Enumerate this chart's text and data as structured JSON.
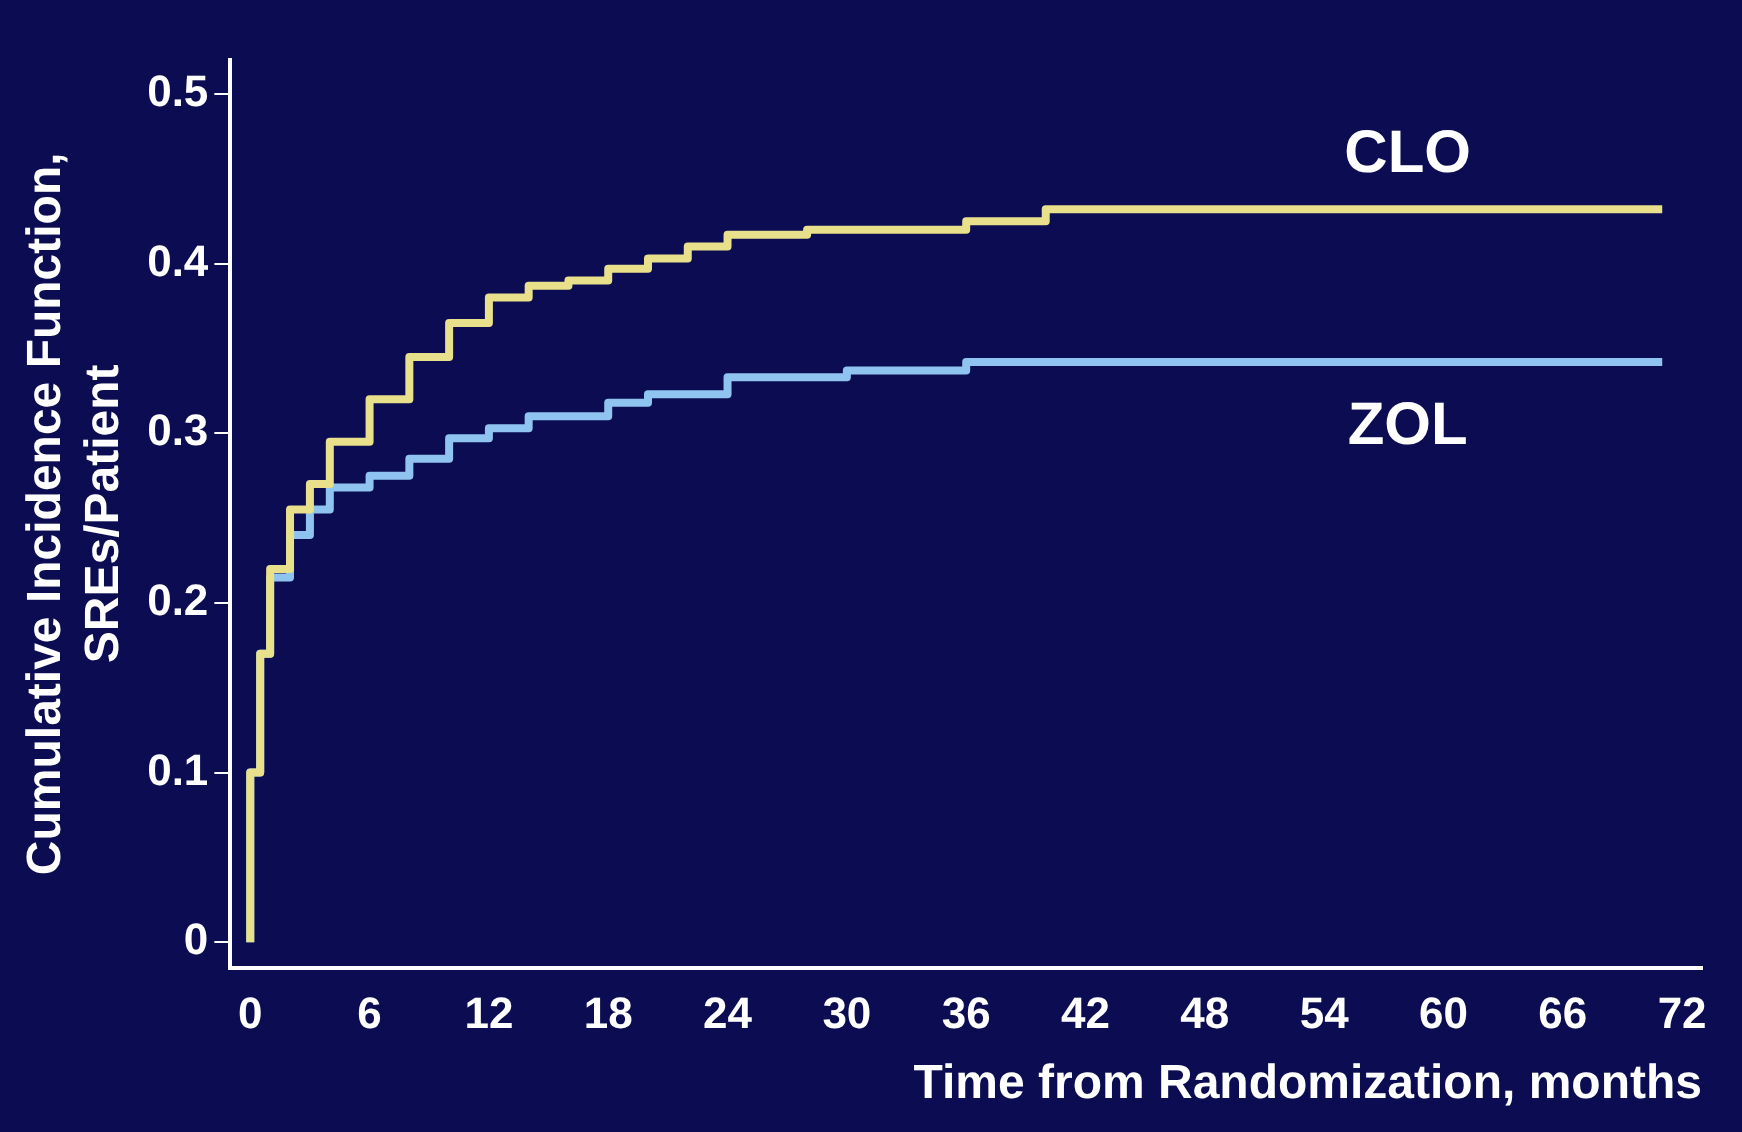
{
  "chart_data": {
    "type": "step",
    "xlabel": "Time from Randomization, months",
    "ylabel": "Cumulative Incidence Function,\nSREs/Patient",
    "xlim": [
      -1,
      73
    ],
    "ylim": [
      -0.015,
      0.52
    ],
    "xticks": [
      0,
      6,
      12,
      18,
      24,
      30,
      36,
      42,
      48,
      54,
      60,
      66,
      72
    ],
    "yticks": [
      0,
      0.1,
      0.2,
      0.3,
      0.4,
      0.5
    ],
    "grid": false,
    "legend": false,
    "marker": "none",
    "line_style": "solid",
    "series": [
      {
        "name": "CLO",
        "color": "#e8e08a",
        "x": [
          0,
          0.5,
          1,
          2,
          3,
          4,
          6,
          8,
          10,
          12,
          14,
          16,
          18,
          20,
          22,
          24,
          28,
          30,
          36,
          40,
          48,
          71
        ],
        "values": [
          0,
          0.1,
          0.17,
          0.22,
          0.255,
          0.27,
          0.295,
          0.32,
          0.345,
          0.365,
          0.38,
          0.387,
          0.39,
          0.397,
          0.403,
          0.41,
          0.417,
          0.42,
          0.42,
          0.425,
          0.432,
          0.432
        ]
      },
      {
        "name": "ZOL",
        "color": "#8fc4f0",
        "x": [
          0,
          0.5,
          1,
          2,
          3,
          4,
          6,
          8,
          10,
          12,
          14,
          18,
          20,
          24,
          30,
          36,
          44,
          71
        ],
        "values": [
          0,
          0.1,
          0.17,
          0.215,
          0.24,
          0.255,
          0.268,
          0.275,
          0.285,
          0.297,
          0.303,
          0.31,
          0.318,
          0.323,
          0.333,
          0.337,
          0.342,
          0.342
        ]
      }
    ]
  }
}
